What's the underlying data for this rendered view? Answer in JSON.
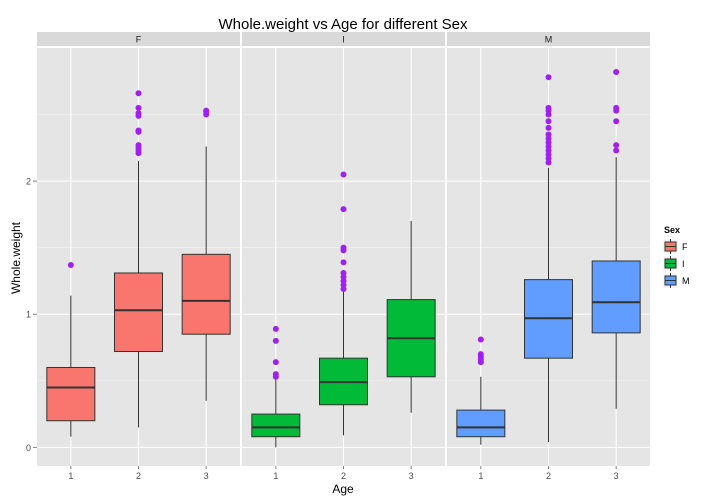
{
  "chart_data": {
    "type": "box",
    "title": "Whole.weight vs Age for different Sex",
    "xlabel": "Age",
    "ylabel": "Whole.weight",
    "ylim": [
      -0.14,
      3.0
    ],
    "y_ticks": [
      0,
      1,
      2
    ],
    "x_categories": [
      "1",
      "2",
      "3"
    ],
    "grid": true,
    "legend": {
      "title": "Sex",
      "position": "right",
      "entries": [
        {
          "label": "F",
          "color": "#F8766D"
        },
        {
          "label": "I",
          "color": "#00BA38"
        },
        {
          "label": "M",
          "color": "#619CFF"
        }
      ]
    },
    "outlier_color": "#A020F0",
    "panels": [
      {
        "label": "F",
        "color": "#F8766D",
        "boxes": [
          {
            "x": "1",
            "lower": 0.08,
            "q1": 0.2,
            "median": 0.45,
            "q3": 0.6,
            "upper": 1.14,
            "outliers": [
              1.37
            ]
          },
          {
            "x": "2",
            "lower": 0.15,
            "q1": 0.72,
            "median": 1.03,
            "q3": 1.31,
            "upper": 2.15,
            "outliers": [
              2.21,
              2.23,
              2.25,
              2.27,
              2.37,
              2.38,
              2.49,
              2.51,
              2.55,
              2.66
            ]
          },
          {
            "x": "3",
            "lower": 0.35,
            "q1": 0.85,
            "median": 1.1,
            "q3": 1.45,
            "upper": 2.26,
            "outliers": [
              2.5,
              2.52,
              2.53
            ]
          }
        ]
      },
      {
        "label": "I",
        "color": "#00BA38",
        "boxes": [
          {
            "x": "1",
            "lower": 0.0,
            "q1": 0.08,
            "median": 0.15,
            "q3": 0.25,
            "upper": 0.51,
            "outliers": [
              0.53,
              0.55,
              0.64,
              0.8,
              0.89
            ]
          },
          {
            "x": "2",
            "lower": 0.09,
            "q1": 0.32,
            "median": 0.49,
            "q3": 0.67,
            "upper": 1.17,
            "outliers": [
              1.19,
              1.22,
              1.25,
              1.28,
              1.31,
              1.39,
              1.48,
              1.5,
              1.79,
              2.05
            ]
          },
          {
            "x": "3",
            "lower": 0.26,
            "q1": 0.53,
            "median": 0.82,
            "q3": 1.11,
            "upper": 1.7,
            "outliers": []
          }
        ]
      },
      {
        "label": "M",
        "color": "#619CFF",
        "boxes": [
          {
            "x": "1",
            "lower": 0.02,
            "q1": 0.08,
            "median": 0.15,
            "q3": 0.28,
            "upper": 0.53,
            "outliers": [
              0.64,
              0.66,
              0.68,
              0.7,
              0.81
            ]
          },
          {
            "x": "2",
            "lower": 0.04,
            "q1": 0.67,
            "median": 0.97,
            "q3": 1.26,
            "upper": 2.1,
            "outliers": [
              2.14,
              2.17,
              2.2,
              2.23,
              2.26,
              2.29,
              2.32,
              2.35,
              2.4,
              2.45,
              2.5,
              2.53,
              2.55,
              2.78
            ]
          },
          {
            "x": "3",
            "lower": 0.29,
            "q1": 0.86,
            "median": 1.09,
            "q3": 1.4,
            "upper": 2.18,
            "outliers": [
              2.23,
              2.27,
              2.45,
              2.53,
              2.55,
              2.82
            ]
          }
        ]
      }
    ]
  }
}
